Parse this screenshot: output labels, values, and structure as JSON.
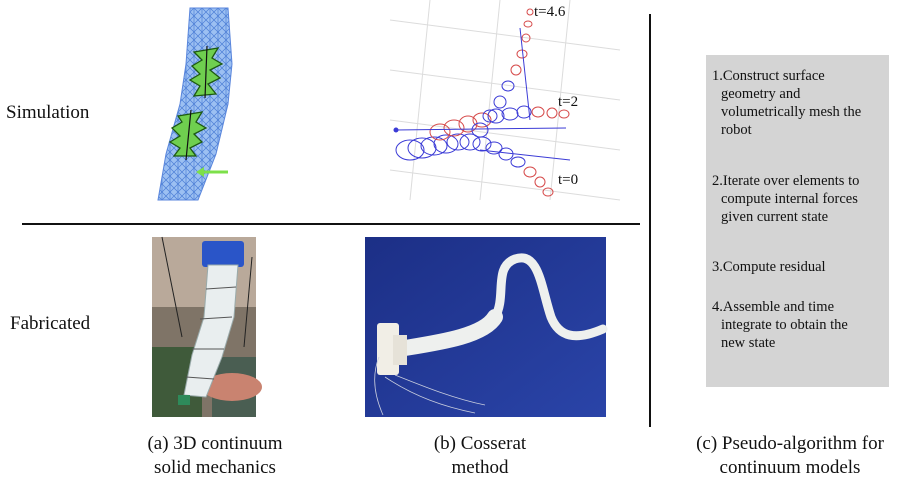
{
  "row_labels": {
    "simulation": "Simulation",
    "fabricated": "Fabricated"
  },
  "time_labels": [
    "t=4.6",
    "t=2",
    "t=0"
  ],
  "captions": {
    "a": [
      "(a) 3D continuum",
      "solid mechanics"
    ],
    "b": [
      "(b) Cosserat",
      "method"
    ],
    "c": [
      "(c) Pseudo-algorithm for",
      "continuum models"
    ]
  },
  "algorithm_steps": [
    [
      "1.Construct surface",
      "geometry and",
      "volumetrically mesh the",
      "robot"
    ],
    [
      "2.Iterate over elements to",
      "compute internal forces",
      "given current state"
    ],
    [
      "3.Compute residual"
    ],
    [
      "4.Assemble and time",
      "integrate to obtain the",
      "new state"
    ]
  ],
  "colors": {
    "mesh_blue": "#7fa8e8",
    "chamber_green": "#6fcf4f",
    "force_arrow": "#7de04a",
    "rod_blue": "#3b3bd6",
    "rod_red": "#d64a4a",
    "algo_box_bg": "#d4d4d4"
  }
}
